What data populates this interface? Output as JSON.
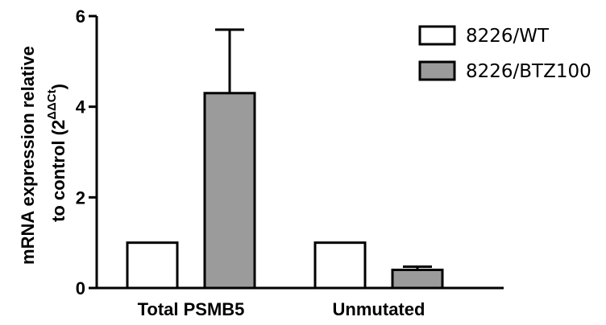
{
  "chart_data": {
    "type": "bar",
    "title": "",
    "xlabel": "",
    "ylabel": {
      "line1": "mRNA expression relative",
      "line2_prefix": "to control (2",
      "line2_superscript": "ΔΔCt",
      "line2_suffix": ")"
    },
    "categories": [
      "Total PSMB5",
      "Unmutated"
    ],
    "ylim": [
      0,
      6
    ],
    "yticks": [
      0,
      2,
      4,
      6
    ],
    "grid": false,
    "legend_position": "top-right",
    "series": [
      {
        "name": "8226/WT",
        "values": [
          1.0,
          1.0
        ],
        "errors": [
          0,
          0
        ],
        "color": "#ffffff"
      },
      {
        "name": "8226/BTZ100",
        "values": [
          4.3,
          0.4
        ],
        "errors": [
          1.4,
          0.07
        ],
        "color": "#9b9b9b"
      }
    ]
  }
}
